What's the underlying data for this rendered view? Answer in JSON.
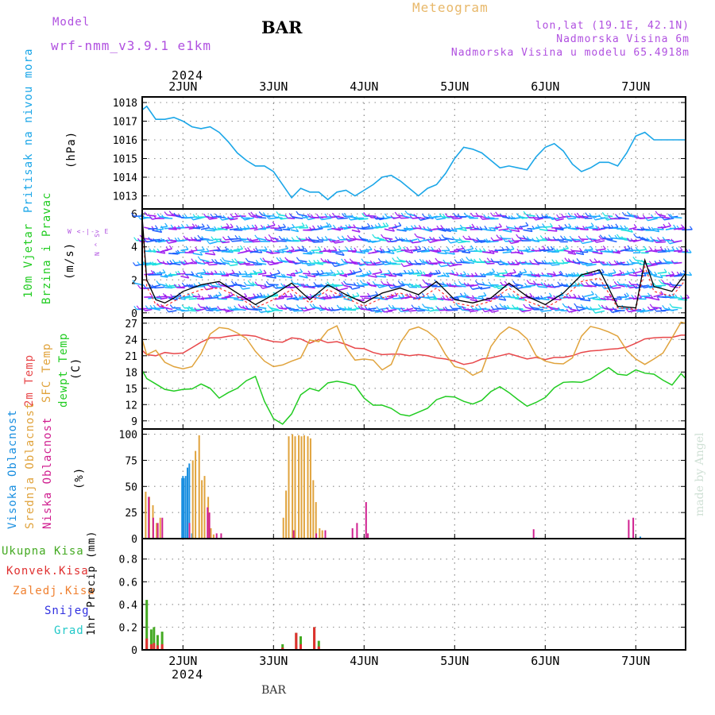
{
  "header": {
    "model_label": "Model",
    "model_name": "wrf-nmm_v3.9.1  e1km",
    "station": "BAR",
    "product": "Meteogram",
    "coords": "lon,lat (19.1E, 42.1N)",
    "elevation": "Nadmorska Visina 6m",
    "model_elevation": "Nadmorska Visina u modelu 65.4918m",
    "credit": "made by Angel",
    "footer_station": "BAR"
  },
  "colors": {
    "pressure": "#1aa6e8",
    "temp2m": "#e8474a",
    "sfc_temp": "#e0a33c",
    "dewpoint": "#22cc22",
    "label_purple": "#b050e0",
    "product_orange": "#e8b86a",
    "cloud_high": "#1a8fe0",
    "cloud_mid": "#e0a33c",
    "cloud_low": "#d02090",
    "precip_total": "#44aa22",
    "precip_conv": "#e03030",
    "precip_frozen": "#f08030",
    "snow": "#3030e0",
    "graupel": "#22c8c8"
  },
  "time_axis": {
    "year": "2024",
    "start_day": 1.55,
    "end_day": 7.55,
    "day_labels": [
      {
        "day": 2,
        "label": "2JUN"
      },
      {
        "day": 3,
        "label": "3JUN"
      },
      {
        "day": 4,
        "label": "4JUN"
      },
      {
        "day": 5,
        "label": "5JUN"
      },
      {
        "day": 6,
        "label": "6JUN"
      },
      {
        "day": 7,
        "label": "7JUN"
      }
    ]
  },
  "panel_labels": {
    "pressure": {
      "title": "Pritisak na nivou mora",
      "unit": "(hPa)"
    },
    "wind": {
      "title_1": "10m Vjetar",
      "title_2": "Brzina i Pravac",
      "unit": "(m/s)",
      "compass": "W <-|-> E",
      "compass_ns": "N ^ S"
    },
    "temp": {
      "t2m": "2m Temp",
      "sfc": "SFC Temp",
      "dew": "dewpt Temp",
      "unit": "(C)"
    },
    "cloud": {
      "high": "Visoka Oblacnost",
      "mid": "Srednja Oblacnost",
      "low": "Niska Oblacnost",
      "unit": "(%)"
    },
    "precip": {
      "total": "Ukupna Kisa",
      "conv": "Konvek.Kisa",
      "frozen": "Zaledj.Kisa",
      "snow": "Snijeg",
      "graupel": "Grad",
      "unit": "1hr Precip (mm)"
    }
  },
  "chart_data": [
    {
      "type": "line",
      "name": "pressure",
      "ylabel": "(hPa)",
      "ylim": [
        1012.3,
        1018.3
      ],
      "yticks": [
        1013,
        1014,
        1015,
        1016,
        1017,
        1018
      ],
      "grid": true,
      "x": [
        1.55,
        1.6,
        1.7,
        1.8,
        1.9,
        2.0,
        2.1,
        2.2,
        2.3,
        2.4,
        2.5,
        2.6,
        2.7,
        2.8,
        2.9,
        3.0,
        3.1,
        3.2,
        3.3,
        3.4,
        3.5,
        3.6,
        3.7,
        3.8,
        3.9,
        4.0,
        4.1,
        4.2,
        4.3,
        4.4,
        4.5,
        4.6,
        4.7,
        4.8,
        4.9,
        5.0,
        5.1,
        5.2,
        5.3,
        5.4,
        5.5,
        5.6,
        5.7,
        5.8,
        5.9,
        6.0,
        6.1,
        6.2,
        6.3,
        6.4,
        6.5,
        6.6,
        6.7,
        6.8,
        6.9,
        7.0,
        7.1,
        7.2,
        7.3,
        7.4,
        7.5,
        7.55
      ],
      "values": [
        1017.6,
        1017.8,
        1017.1,
        1017.1,
        1017.2,
        1017.0,
        1016.7,
        1016.6,
        1016.7,
        1016.4,
        1015.9,
        1015.3,
        1014.9,
        1014.6,
        1014.6,
        1014.3,
        1013.6,
        1012.9,
        1013.4,
        1013.2,
        1013.2,
        1012.8,
        1013.2,
        1013.3,
        1013.0,
        1013.3,
        1013.6,
        1014.0,
        1014.1,
        1013.8,
        1013.4,
        1013.0,
        1013.4,
        1013.6,
        1014.2,
        1015.0,
        1015.6,
        1015.5,
        1015.3,
        1014.9,
        1014.5,
        1014.6,
        1014.5,
        1014.4,
        1015.1,
        1015.6,
        1015.8,
        1015.4,
        1014.7,
        1014.3,
        1014.5,
        1014.8,
        1014.8,
        1014.6,
        1015.3,
        1016.2,
        1016.4,
        1016.0,
        1016.0,
        1016.0,
        1016.0,
        1016.0
      ]
    },
    {
      "type": "line",
      "name": "wind_speed",
      "ylabel": "(m/s)",
      "ylim": [
        -0.3,
        6.3
      ],
      "yticks": [
        0,
        2,
        4,
        6
      ],
      "grid": true,
      "x": [
        1.55,
        1.6,
        1.7,
        1.8,
        1.9,
        2.0,
        2.2,
        2.4,
        2.6,
        2.8,
        3.0,
        3.2,
        3.4,
        3.6,
        3.8,
        4.0,
        4.2,
        4.4,
        4.6,
        4.8,
        5.0,
        5.2,
        5.4,
        5.6,
        5.8,
        6.0,
        6.2,
        6.4,
        6.6,
        6.8,
        7.0,
        7.1,
        7.2,
        7.4,
        7.55
      ],
      "values": [
        5.8,
        2.0,
        0.8,
        0.6,
        0.9,
        1.3,
        1.7,
        1.9,
        1.2,
        0.5,
        1.1,
        1.8,
        0.8,
        1.7,
        1.1,
        0.6,
        1.2,
        1.5,
        1.1,
        1.9,
        0.8,
        0.6,
        0.9,
        1.8,
        1.0,
        0.5,
        1.2,
        2.3,
        2.6,
        0.4,
        0.3,
        3.2,
        1.6,
        1.3,
        2.4
      ],
      "gusts": [
        5.5,
        1.6,
        0.5,
        0.4,
        0.7,
        1.0,
        1.4,
        1.5,
        1.0,
        0.3,
        0.8,
        1.4,
        0.6,
        1.4,
        0.9,
        0.4,
        0.9,
        1.2,
        0.8,
        1.5,
        0.6,
        0.4,
        0.7,
        1.5,
        0.7,
        0.3,
        0.9,
        1.9,
        2.1,
        0.3,
        0.2,
        2.8,
        1.3,
        1.0,
        2.0
      ]
    },
    {
      "type": "line",
      "name": "temperature",
      "ylabel": "(C)",
      "ylim": [
        7.5,
        28
      ],
      "yticks": [
        9,
        12,
        15,
        18,
        21,
        24,
        27
      ],
      "grid": true,
      "x": [
        1.55,
        1.6,
        1.7,
        1.8,
        1.9,
        2.0,
        2.1,
        2.2,
        2.3,
        2.4,
        2.5,
        2.6,
        2.7,
        2.8,
        2.9,
        3.0,
        3.1,
        3.2,
        3.3,
        3.4,
        3.5,
        3.6,
        3.7,
        3.8,
        3.9,
        4.0,
        4.1,
        4.2,
        4.3,
        4.4,
        4.5,
        4.6,
        4.7,
        4.8,
        4.9,
        5.0,
        5.1,
        5.2,
        5.3,
        5.4,
        5.5,
        5.6,
        5.7,
        5.8,
        5.9,
        6.0,
        6.1,
        6.2,
        6.3,
        6.4,
        6.5,
        6.6,
        6.7,
        6.8,
        6.9,
        7.0,
        7.1,
        7.2,
        7.3,
        7.4,
        7.5,
        7.55
      ],
      "series": [
        {
          "name": "2m Temp",
          "values": [
            22.0,
            21.2,
            21.0,
            21.6,
            21.4,
            21.5,
            22.5,
            23.5,
            24.3,
            24.3,
            24.6,
            24.8,
            24.8,
            24.6,
            24.0,
            23.6,
            23.5,
            24.3,
            24.1,
            23.3,
            24.0,
            23.4,
            23.6,
            23.1,
            22.4,
            22.3,
            21.6,
            21.2,
            21.3,
            21.3,
            21.0,
            21.2,
            21.0,
            20.6,
            20.4,
            20.0,
            19.4,
            19.7,
            20.4,
            20.6,
            21.0,
            21.4,
            20.9,
            20.4,
            20.7,
            20.3,
            20.7,
            20.7,
            21.0,
            21.6,
            21.9,
            22.0,
            22.2,
            22.3,
            22.6,
            23.3,
            24.1,
            24.3,
            24.4,
            24.4,
            24.8,
            24.8
          ]
        },
        {
          "name": "SFC Temp",
          "values": [
            24.0,
            21.2,
            22.0,
            19.8,
            19.0,
            18.6,
            19.0,
            21.4,
            25.0,
            26.2,
            26.0,
            25.2,
            24.2,
            21.8,
            20.0,
            19.0,
            19.3,
            20.0,
            20.6,
            23.9,
            23.6,
            25.7,
            26.5,
            22.5,
            20.2,
            20.4,
            20.2,
            18.4,
            19.4,
            23.4,
            25.8,
            26.3,
            25.5,
            24.1,
            21.2,
            19.0,
            18.6,
            17.4,
            18.2,
            22.7,
            25.0,
            26.3,
            25.6,
            24.1,
            21.0,
            20.0,
            19.6,
            19.5,
            20.6,
            24.6,
            26.4,
            26.0,
            25.4,
            24.6,
            22.0,
            20.4,
            19.4,
            20.4,
            21.5,
            24.3,
            27.2,
            27.0
          ]
        },
        {
          "name": "dewpt Temp",
          "values": [
            18.3,
            16.8,
            15.8,
            14.8,
            14.5,
            14.8,
            14.9,
            15.8,
            15.0,
            13.2,
            14.2,
            15.0,
            16.4,
            17.2,
            12.6,
            9.4,
            8.4,
            10.3,
            13.8,
            15.0,
            14.5,
            16.0,
            16.3,
            16.0,
            15.5,
            13.2,
            11.9,
            11.9,
            11.3,
            10.2,
            9.9,
            10.6,
            11.3,
            12.9,
            13.5,
            13.4,
            12.6,
            12.1,
            12.8,
            14.4,
            15.3,
            14.2,
            12.9,
            11.7,
            12.4,
            13.3,
            15.1,
            16.1,
            16.2,
            16.1,
            16.7,
            17.8,
            18.8,
            17.6,
            17.4,
            18.4,
            17.8,
            17.6,
            16.5,
            15.6,
            17.7,
            16.8
          ]
        }
      ]
    },
    {
      "type": "bar",
      "name": "cloud_cover",
      "ylabel": "(%)",
      "ylim": [
        0,
        105
      ],
      "yticks": [
        0,
        25,
        50,
        75,
        100
      ],
      "grid": true,
      "series": [
        {
          "name": "Visoka Oblacnost",
          "x": [
            1.99,
            2.0,
            2.01,
            2.03,
            2.05,
            2.07,
            2.1,
            2.3,
            5.9,
            7.05
          ],
          "values": [
            58,
            60,
            58,
            60,
            68,
            72,
            5,
            2,
            1,
            2
          ]
        },
        {
          "name": "Srednja Oblacnost",
          "x": [
            1.58,
            1.62,
            1.66,
            1.7,
            1.74,
            2.1,
            2.13,
            2.17,
            2.2,
            2.23,
            2.27,
            2.3,
            2.33,
            3.1,
            3.13,
            3.16,
            3.2,
            3.23,
            3.27,
            3.3,
            3.33,
            3.37,
            3.4,
            3.43,
            3.46,
            3.5,
            3.53
          ],
          "values": [
            45,
            40,
            32,
            15,
            20,
            75,
            84,
            99,
            56,
            60,
            40,
            10,
            4,
            20,
            46,
            98,
            100,
            98,
            99,
            98,
            99,
            98,
            96,
            56,
            35,
            10,
            8
          ]
        },
        {
          "name": "Niska Oblacnost",
          "x": [
            1.6,
            1.65,
            1.7,
            1.75,
            2.05,
            2.25,
            2.27,
            2.35,
            2.4,
            3.2,
            3.45,
            3.55,
            3.85,
            3.9,
            4.0,
            4.02,
            5.85,
            6.9,
            6.95
          ],
          "values": [
            40,
            20,
            15,
            20,
            15,
            30,
            25,
            5,
            5,
            8,
            5,
            8,
            10,
            15,
            35,
            5,
            9,
            18,
            20
          ]
        }
      ]
    },
    {
      "type": "bar",
      "name": "precipitation",
      "ylabel": "1hr Precip (mm)",
      "ylim": [
        0,
        0.98
      ],
      "yticks": [
        0,
        0.2,
        0.4,
        0.6,
        0.8
      ],
      "grid": true,
      "series": [
        {
          "name": "Ukupna Kisa",
          "x": [
            1.6,
            1.65,
            1.68,
            1.72,
            1.77,
            3.1,
            3.25,
            3.3,
            3.45,
            3.5
          ],
          "values": [
            0.44,
            0.18,
            0.2,
            0.13,
            0.16,
            0.05,
            0.15,
            0.12,
            0.2,
            0.08
          ]
        },
        {
          "name": "Konvek.Kisa",
          "x": [
            1.6,
            1.65,
            1.68,
            1.72,
            1.77,
            3.1,
            3.25,
            3.3,
            3.45,
            3.5
          ],
          "values": [
            0.1,
            0.05,
            0.06,
            0.04,
            0.05,
            0.02,
            0.15,
            0.05,
            0.2,
            0.03
          ]
        }
      ]
    }
  ]
}
